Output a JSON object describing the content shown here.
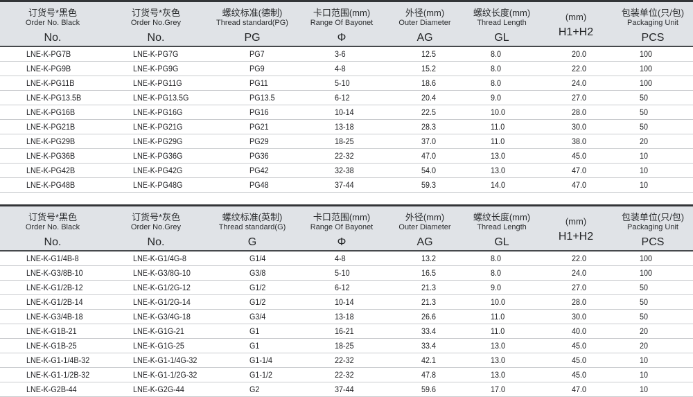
{
  "tables": [
    {
      "name": "pg-thread-table",
      "headers": [
        {
          "cn": "订货号*黑色",
          "en": "Order No. Black",
          "code": "No."
        },
        {
          "cn": "订货号*灰色",
          "en": "Order No.Grey",
          "code": "No."
        },
        {
          "cn": "螺纹标准(德制)",
          "en": "Thread standard(PG)",
          "code": "PG"
        },
        {
          "cn": "卡口范围(mm)",
          "en": "Range Of Bayonet",
          "code": "Φ"
        },
        {
          "cn": "外径(mm)",
          "en": "Outer Diameter",
          "code": "AG"
        },
        {
          "cn": "螺纹长度(mm)",
          "en": "Thread Length",
          "code": "GL"
        },
        {
          "cn": "(mm)",
          "en": "",
          "code": "H1+H2"
        },
        {
          "cn": "包装单位(只/包)",
          "en": "Packaging Unit",
          "code": "PCS"
        }
      ],
      "rows": [
        [
          "LNE-K-PG7B",
          "LNE-K-PG7G",
          "PG7",
          "3-6",
          "12.5",
          "8.0",
          "20.0",
          "100"
        ],
        [
          "LNE-K-PG9B",
          "LNE-K-PG9G",
          "PG9",
          "4-8",
          "15.2",
          "8.0",
          "22.0",
          "100"
        ],
        [
          "LNE-K-PG11B",
          "LNE-K-PG11G",
          "PG11",
          "5-10",
          "18.6",
          "8.0",
          "24.0",
          "100"
        ],
        [
          "LNE-K-PG13.5B",
          "LNE-K-PG13.5G",
          "PG13.5",
          "6-12",
          "20.4",
          "9.0",
          "27.0",
          "50"
        ],
        [
          "LNE-K-PG16B",
          "LNE-K-PG16G",
          "PG16",
          "10-14",
          "22.5",
          "10.0",
          "28.0",
          "50"
        ],
        [
          "LNE-K-PG21B",
          "LNE-K-PG21G",
          "PG21",
          "13-18",
          "28.3",
          "11.0",
          "30.0",
          "50"
        ],
        [
          "LNE-K-PG29B",
          "LNE-K-PG29G",
          "PG29",
          "18-25",
          "37.0",
          "11.0",
          "38.0",
          "20"
        ],
        [
          "LNE-K-PG36B",
          "LNE-K-PG36G",
          "PG36",
          "22-32",
          "47.0",
          "13.0",
          "45.0",
          "10"
        ],
        [
          "LNE-K-PG42B",
          "LNE-K-PG42G",
          "PG42",
          "32-38",
          "54.0",
          "13.0",
          "47.0",
          "10"
        ],
        [
          "LNE-K-PG48B",
          "LNE-K-PG48G",
          "PG48",
          "37-44",
          "59.3",
          "14.0",
          "47.0",
          "10"
        ]
      ]
    },
    {
      "name": "g-thread-table",
      "headers": [
        {
          "cn": "订货号*黑色",
          "en": "Order No. Black",
          "code": "No."
        },
        {
          "cn": "订货号*灰色",
          "en": "Order No.Grey",
          "code": "No."
        },
        {
          "cn": "螺纹标准(英制)",
          "en": "Thread standard(G)",
          "code": "G"
        },
        {
          "cn": "卡口范围(mm)",
          "en": "Range Of Bayonet",
          "code": "Φ"
        },
        {
          "cn": "外径(mm)",
          "en": "Outer Diameter",
          "code": "AG"
        },
        {
          "cn": "螺纹长度(mm)",
          "en": "Thread Length",
          "code": "GL"
        },
        {
          "cn": "(mm)",
          "en": "",
          "code": "H1+H2"
        },
        {
          "cn": "包装单位(只/包)",
          "en": "Packaging Unit",
          "code": "PCS"
        }
      ],
      "rows": [
        [
          "LNE-K-G1/4B-8",
          "LNE-K-G1/4G-8",
          "G1/4",
          "4-8",
          "13.2",
          "8.0",
          "22.0",
          "100"
        ],
        [
          "LNE-K-G3/8B-10",
          "LNE-K-G3/8G-10",
          "G3/8",
          "5-10",
          "16.5",
          "8.0",
          "24.0",
          "100"
        ],
        [
          "LNE-K-G1/2B-12",
          "LNE-K-G1/2G-12",
          "G1/2",
          "6-12",
          "21.3",
          "9.0",
          "27.0",
          "50"
        ],
        [
          "LNE-K-G1/2B-14",
          "LNE-K-G1/2G-14",
          "G1/2",
          "10-14",
          "21.3",
          "10.0",
          "28.0",
          "50"
        ],
        [
          "LNE-K-G3/4B-18",
          "LNE-K-G3/4G-18",
          "G3/4",
          "13-18",
          "26.6",
          "11.0",
          "30.0",
          "50"
        ],
        [
          "LNE-K-G1B-21",
          "LNE-K-G1G-21",
          "G1",
          "16-21",
          "33.4",
          "11.0",
          "40.0",
          "20"
        ],
        [
          "LNE-K-G1B-25",
          "LNE-K-G1G-25",
          "G1",
          "18-25",
          "33.4",
          "13.0",
          "45.0",
          "20"
        ],
        [
          "LNE-K-G1-1/4B-32",
          "LNE-K-G1-1/4G-32",
          "G1-1/4",
          "22-32",
          "42.1",
          "13.0",
          "45.0",
          "10"
        ],
        [
          "LNE-K-G1-1/2B-32",
          "LNE-K-G1-1/2G-32",
          "G1-1/2",
          "22-32",
          "47.8",
          "13.0",
          "45.0",
          "10"
        ],
        [
          "LNE-K-G2B-44",
          "LNE-K-G2G-44",
          "G2",
          "37-44",
          "59.6",
          "17.0",
          "47.0",
          "10"
        ]
      ]
    }
  ],
  "colors": {
    "header_bg": "#e0e3e7",
    "top_rule": "#333538",
    "header_rule": "#46494c",
    "row_rule": "#c9cbce",
    "text": "#202124"
  }
}
